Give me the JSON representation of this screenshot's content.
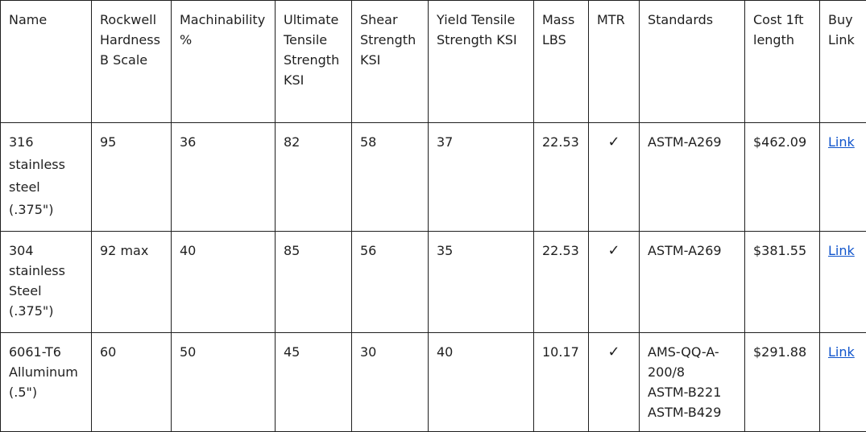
{
  "table": {
    "headers": [
      "Name",
      "Rockwell Hardness B Scale",
      "Machinability %",
      "Ultimate Tensile Strength KSI",
      "Shear Strength KSI",
      "Yield Tensile Strength KSI",
      "Mass LBS",
      "MTR",
      "Standards",
      "Cost 1ft length",
      "Buy Link"
    ],
    "rows": [
      {
        "name": "316 stainless steel (.375\")",
        "hardness": "95",
        "machinability": "36",
        "uts": "82",
        "shear": "58",
        "yield": "37",
        "mass": "22.53",
        "mtr": "✓",
        "standards": [
          "ASTM-A269"
        ],
        "cost": "$462.09",
        "link": "Link"
      },
      {
        "name": "304 stainless Steel (.375\")",
        "hardness": "92 max",
        "machinability": "40",
        "uts": "85",
        "shear": "56",
        "yield": "35",
        "mass": "22.53",
        "mtr": "✓",
        "standards": [
          "ASTM-A269"
        ],
        "cost": "$381.55",
        "link": "Link"
      },
      {
        "name": "6061-T6 Alluminum (.5\")",
        "hardness": "60",
        "machinability": "50",
        "uts": "45",
        "shear": "30",
        "yield": "40",
        "mass": "10.17",
        "mtr": "✓",
        "standards": [
          "AMS-QQ-A-200/8",
          "ASTM-B221",
          "ASTM-B429"
        ],
        "cost": "$291.88",
        "link": "Link"
      }
    ]
  }
}
